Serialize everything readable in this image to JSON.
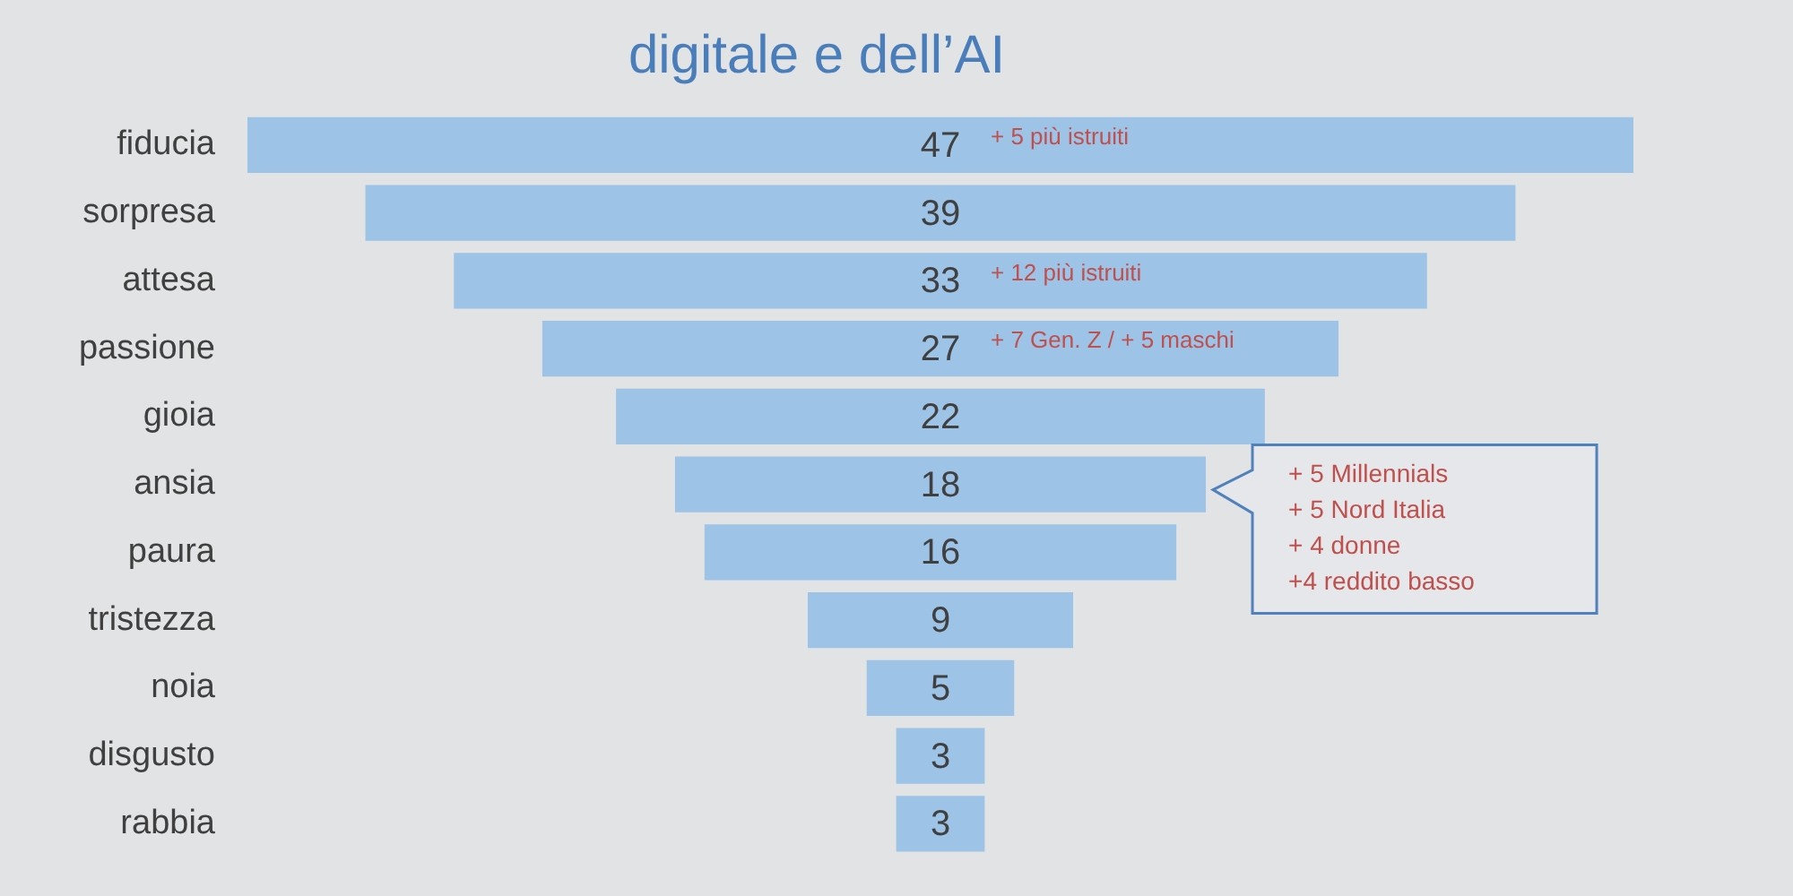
{
  "chart_data": {
    "type": "other",
    "title": "digitale e dell’AI",
    "categories": [
      "fiducia",
      "sorpresa",
      "attesa",
      "passione",
      "gioia",
      "ansia",
      "paura",
      "tristezza",
      "noia",
      "disgusto",
      "rabbia"
    ],
    "values": [
      47,
      39,
      33,
      27,
      22,
      18,
      16,
      9,
      5,
      3,
      3
    ],
    "color": "#9dc3e6",
    "data_labels": true,
    "annotations": [
      {
        "text": "+ 5 più istruiti",
        "y": "fiducia"
      },
      {
        "text": "+ 12 più istruiti",
        "y": "attesa"
      },
      {
        "text": "+ 7 Gen. Z / + 5 maschi",
        "y": "passione"
      },
      {
        "text": "+ 5 Millennials\n+ 5 Nord Italia\n+ 4 donne\n+4 reddito basso",
        "y": "ansia"
      }
    ]
  }
}
